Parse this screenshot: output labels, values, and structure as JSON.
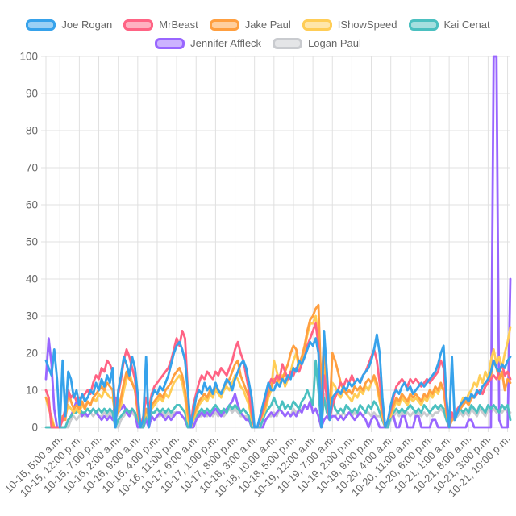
{
  "legend": {
    "items": [
      {
        "label": "Joe Rogan",
        "color": "#36A2EB"
      },
      {
        "label": "MrBeast",
        "color": "#FF6384"
      },
      {
        "label": "Jake Paul",
        "color": "#FF9F40"
      },
      {
        "label": "IShowSpeed",
        "color": "#FFCD56"
      },
      {
        "label": "Kai Cenat",
        "color": "#4BC0C0"
      },
      {
        "label": "Jennifer Affleck",
        "color": "#9966FF"
      },
      {
        "label": "Logan Paul",
        "color": "#C9CBCF"
      }
    ]
  },
  "chart_data": {
    "type": "line",
    "title": "",
    "xlabel": "",
    "ylabel": "",
    "ylim": [
      0,
      100
    ],
    "y_ticks": [
      0,
      10,
      20,
      30,
      40,
      50,
      60,
      70,
      80,
      90,
      100
    ],
    "grid": true,
    "legend_position": "top",
    "x_tick_first_index": 5,
    "x_tick_step": 7,
    "x_tick_labels": [
      "10-15, 5:00 a.m.",
      "10-15, 12:00 p.m.",
      "10-15, 7:00 p.m.",
      "10-16, 2:00 a.m.",
      "10-16, 9:00 a.m.",
      "10-16, 4:00 p.m.",
      "10-16, 11:00 p.m.",
      "10-17, 6:00 a.m.",
      "10-17, 1:00 p.m.",
      "10-17, 8:00 p.m.",
      "10-18, 3:00 a.m.",
      "10-18, 10:00 a.m.",
      "10-18, 5:00 p.m.",
      "10-19, 12:00 a.m.",
      "10-19, 7:00 a.m.",
      "10-19, 2:00 p.m.",
      "10-19, 9:00 p.m.",
      "10-20, 4:00 a.m.",
      "10-20, 11:00 a.m.",
      "10-20, 6:00 p.m.",
      "10-21, 1:00 a.m.",
      "10-21, 8:00 a.m.",
      "10-21, 3:00 p.m.",
      "10-21, 10:00 p.m."
    ],
    "series": [
      {
        "name": "Joe Rogan",
        "color": "#36A2EB",
        "values": [
          18,
          16,
          14,
          21,
          13,
          0,
          18,
          3,
          15,
          13,
          8,
          10,
          6,
          9,
          7,
          8,
          10,
          9,
          12,
          10,
          13,
          11,
          14,
          12,
          16,
          0,
          10,
          14,
          19,
          17,
          14,
          19,
          16,
          9,
          0,
          2,
          19,
          0,
          8,
          10,
          9,
          11,
          10,
          12,
          14,
          17,
          20,
          22,
          23,
          21,
          18,
          10,
          0,
          4,
          8,
          10,
          9,
          12,
          10,
          11,
          9,
          12,
          10,
          9,
          11,
          13,
          12,
          10,
          13,
          15,
          17,
          18,
          16,
          12,
          8,
          0,
          0,
          3,
          6,
          9,
          12,
          10,
          10,
          12,
          11,
          13,
          12,
          14,
          13,
          16,
          15,
          18,
          17,
          19,
          21,
          23,
          22,
          24,
          20,
          0,
          26,
          15,
          2,
          8,
          9,
          10,
          9,
          11,
          10,
          12,
          11,
          12,
          13,
          12,
          14,
          15,
          16,
          18,
          21,
          25,
          20,
          8,
          0,
          2,
          6,
          9,
          10,
          9,
          11,
          12,
          10,
          11,
          9,
          10,
          11,
          12,
          11,
          12,
          13,
          14,
          15,
          17,
          20,
          22,
          8,
          0,
          19,
          2,
          4,
          6,
          7,
          8,
          7,
          9,
          8,
          10,
          9,
          11,
          12,
          13,
          15,
          18,
          16,
          15,
          17,
          16,
          18,
          19
        ]
      },
      {
        "name": "MrBeast",
        "color": "#FF6384",
        "values": [
          10,
          8,
          0,
          0,
          0,
          0,
          2,
          5,
          10,
          8,
          9,
          7,
          8,
          8,
          9,
          10,
          9,
          12,
          14,
          13,
          16,
          15,
          18,
          17,
          15,
          4,
          9,
          13,
          18,
          21,
          19,
          16,
          13,
          6,
          0,
          3,
          8,
          5,
          9,
          11,
          12,
          13,
          14,
          15,
          16,
          18,
          21,
          24,
          22,
          26,
          24,
          10,
          0,
          6,
          9,
          12,
          14,
          13,
          15,
          14,
          13,
          15,
          14,
          16,
          15,
          14,
          16,
          18,
          21,
          23,
          20,
          18,
          14,
          10,
          4,
          0,
          0,
          2,
          5,
          8,
          11,
          13,
          12,
          14,
          13,
          17,
          15,
          13,
          15,
          14,
          16,
          15,
          17,
          19,
          22,
          24,
          26,
          28,
          22,
          0,
          14,
          8,
          2,
          6,
          8,
          10,
          12,
          11,
          13,
          12,
          14,
          12,
          13,
          12,
          14,
          15,
          17,
          19,
          21,
          18,
          12,
          6,
          0,
          2,
          5,
          8,
          11,
          12,
          13,
          12,
          11,
          13,
          12,
          13,
          12,
          11,
          12,
          13,
          12,
          13,
          14,
          15,
          18,
          16,
          6,
          0,
          4,
          2,
          5,
          6,
          7,
          8,
          7,
          9,
          8,
          9,
          10,
          9,
          11,
          12,
          13,
          14,
          13,
          15,
          17,
          14,
          15,
          13
        ]
      },
      {
        "name": "Jake Paul",
        "color": "#FF9F40",
        "values": [
          8,
          6,
          2,
          0,
          0,
          0,
          3,
          2,
          10,
          7,
          5,
          6,
          5,
          7,
          5,
          7,
          6,
          8,
          9,
          10,
          11,
          10,
          12,
          11,
          10,
          2,
          5,
          8,
          12,
          15,
          13,
          12,
          10,
          4,
          0,
          2,
          5,
          3,
          6,
          7,
          8,
          9,
          8,
          10,
          11,
          12,
          14,
          15,
          16,
          14,
          10,
          4,
          0,
          3,
          5,
          7,
          8,
          9,
          8,
          10,
          9,
          11,
          10,
          9,
          11,
          12,
          13,
          15,
          17,
          18,
          14,
          12,
          10,
          8,
          3,
          0,
          0,
          2,
          4,
          6,
          9,
          11,
          13,
          12,
          14,
          13,
          15,
          17,
          20,
          22,
          21,
          17,
          19,
          22,
          26,
          29,
          30,
          32,
          33,
          10,
          24,
          8,
          4,
          20,
          18,
          15,
          12,
          10,
          9,
          10,
          9,
          11,
          10,
          11,
          10,
          12,
          13,
          12,
          14,
          12,
          8,
          4,
          0,
          2,
          4,
          6,
          8,
          7,
          9,
          8,
          7,
          9,
          8,
          9,
          8,
          7,
          9,
          8,
          10,
          9,
          11,
          10,
          12,
          10,
          4,
          0,
          2,
          3,
          4,
          5,
          6,
          7,
          6,
          8,
          8,
          9,
          10,
          9,
          11,
          12,
          14,
          18,
          16,
          13,
          15,
          10,
          13,
          12
        ]
      },
      {
        "name": "IShowSpeed",
        "color": "#FFCD56",
        "values": [
          8,
          5,
          3,
          0,
          0,
          0,
          2,
          3,
          6,
          5,
          4,
          5,
          4,
          6,
          5,
          7,
          6,
          8,
          7,
          9,
          8,
          10,
          9,
          8,
          8,
          3,
          4,
          6,
          10,
          13,
          15,
          12,
          10,
          5,
          0,
          2,
          4,
          2,
          5,
          6,
          7,
          8,
          7,
          9,
          8,
          10,
          12,
          13,
          14,
          12,
          8,
          2,
          0,
          2,
          4,
          6,
          7,
          8,
          7,
          9,
          8,
          10,
          9,
          8,
          10,
          11,
          10,
          12,
          14,
          13,
          11,
          10,
          8,
          6,
          2,
          0,
          0,
          2,
          3,
          5,
          8,
          10,
          18,
          15,
          12,
          14,
          11,
          13,
          15,
          18,
          20,
          16,
          18,
          21,
          25,
          28,
          28,
          30,
          24,
          6,
          16,
          10,
          3,
          12,
          11,
          9,
          8,
          10,
          9,
          8,
          7,
          9,
          8,
          10,
          9,
          11,
          10,
          12,
          13,
          11,
          7,
          3,
          0,
          2,
          3,
          5,
          7,
          6,
          8,
          7,
          6,
          8,
          7,
          8,
          7,
          6,
          8,
          7,
          9,
          8,
          10,
          9,
          11,
          10,
          4,
          0,
          2,
          3,
          5,
          6,
          8,
          7,
          9,
          10,
          12,
          11,
          14,
          12,
          15,
          13,
          18,
          21,
          17,
          19,
          16,
          20,
          23,
          27
        ]
      },
      {
        "name": "Kai Cenat",
        "color": "#4BC0C0",
        "values": [
          0,
          0,
          0,
          0,
          0,
          0,
          0,
          0,
          2,
          3,
          4,
          4,
          5,
          4,
          4,
          5,
          4,
          5,
          4,
          5,
          4,
          5,
          4,
          5,
          4,
          0,
          2,
          3,
          4,
          5,
          4,
          5,
          4,
          2,
          0,
          0,
          3,
          2,
          4,
          4,
          5,
          4,
          5,
          4,
          5,
          4,
          5,
          6,
          6,
          5,
          4,
          0,
          0,
          2,
          3,
          4,
          5,
          4,
          5,
          4,
          5,
          6,
          5,
          4,
          5,
          4,
          6,
          5,
          6,
          5,
          4,
          5,
          4,
          3,
          0,
          0,
          0,
          0,
          2,
          4,
          5,
          6,
          8,
          6,
          5,
          7,
          5,
          6,
          5,
          7,
          6,
          5,
          7,
          8,
          10,
          8,
          6,
          18,
          10,
          0,
          8,
          4,
          3,
          8,
          5,
          4,
          5,
          4,
          6,
          5,
          4,
          5,
          4,
          6,
          5,
          4,
          6,
          5,
          7,
          6,
          4,
          2,
          0,
          0,
          3,
          4,
          5,
          4,
          5,
          4,
          5,
          6,
          5,
          4,
          5,
          4,
          6,
          5,
          4,
          5,
          6,
          5,
          6,
          5,
          2,
          0,
          3,
          2,
          4,
          5,
          4,
          5,
          4,
          6,
          5,
          4,
          6,
          5,
          4,
          6,
          5,
          6,
          5,
          4,
          6,
          5,
          6,
          2
        ]
      },
      {
        "name": "Jennifer Affleck",
        "color": "#9966FF",
        "values": [
          13,
          24,
          17,
          5,
          0,
          0,
          0,
          0,
          2,
          3,
          5,
          7,
          5,
          3,
          4,
          3,
          4,
          5,
          4,
          3,
          2,
          3,
          2,
          3,
          2,
          8,
          4,
          5,
          6,
          4,
          3,
          5,
          4,
          0,
          0,
          0,
          2,
          0,
          3,
          2,
          3,
          4,
          3,
          2,
          3,
          2,
          3,
          4,
          4,
          3,
          2,
          0,
          0,
          0,
          2,
          3,
          4,
          3,
          4,
          3,
          4,
          5,
          4,
          3,
          4,
          5,
          6,
          7,
          9,
          6,
          4,
          3,
          2,
          2,
          0,
          0,
          0,
          0,
          0,
          2,
          3,
          4,
          3,
          4,
          5,
          4,
          3,
          4,
          3,
          4,
          3,
          5,
          4,
          6,
          5,
          7,
          4,
          5,
          3,
          0,
          2,
          3,
          2,
          3,
          3,
          2,
          3,
          2,
          3,
          4,
          3,
          2,
          3,
          4,
          3,
          2,
          0,
          2,
          3,
          2,
          0,
          0,
          0,
          0,
          3,
          3,
          0,
          0,
          3,
          3,
          0,
          0,
          0,
          3,
          3,
          0,
          0,
          0,
          0,
          2,
          2,
          0,
          0,
          0,
          0,
          0,
          0,
          0,
          0,
          0,
          0,
          0,
          2,
          2,
          0,
          0,
          0,
          0,
          0,
          0,
          0,
          100,
          100,
          2,
          0,
          0,
          0,
          40
        ]
      },
      {
        "name": "Logan Paul",
        "color": "#C9CBCF",
        "values": [
          0,
          0,
          0,
          0,
          0,
          0,
          0,
          0,
          0,
          2,
          3,
          2,
          3,
          4,
          3,
          3,
          4,
          3,
          4,
          3,
          3,
          4,
          3,
          4,
          3,
          0,
          0,
          2,
          3,
          4,
          3,
          4,
          3,
          0,
          0,
          0,
          2,
          0,
          3,
          2,
          3,
          3,
          4,
          3,
          4,
          3,
          4,
          4,
          4,
          3,
          2,
          0,
          0,
          0,
          2,
          3,
          3,
          4,
          3,
          4,
          3,
          4,
          3,
          4,
          3,
          4,
          5,
          4,
          5,
          4,
          3,
          3,
          3,
          2,
          0,
          0,
          0,
          0,
          0,
          2,
          3,
          3,
          4,
          3,
          5,
          4,
          3,
          4,
          3,
          5,
          4,
          4,
          5,
          6,
          5,
          7,
          4,
          5,
          3,
          0,
          9,
          6,
          2,
          3,
          3,
          4,
          3,
          4,
          3,
          4,
          3,
          4,
          3,
          4,
          3,
          4,
          4,
          3,
          4,
          3,
          3,
          2,
          0,
          0,
          2,
          3,
          4,
          3,
          4,
          3,
          4,
          3,
          4,
          3,
          4,
          3,
          4,
          3,
          4,
          3,
          4,
          4,
          5,
          4,
          2,
          0,
          2,
          2,
          3,
          4,
          3,
          4,
          3,
          5,
          4,
          3,
          5,
          4,
          3,
          5,
          4,
          5,
          4,
          5,
          4,
          5,
          4,
          4
        ]
      }
    ]
  },
  "style": {
    "text_color": "#666666",
    "grid_color": "#e0e0e0",
    "axis_color": "#e0e0e0"
  }
}
